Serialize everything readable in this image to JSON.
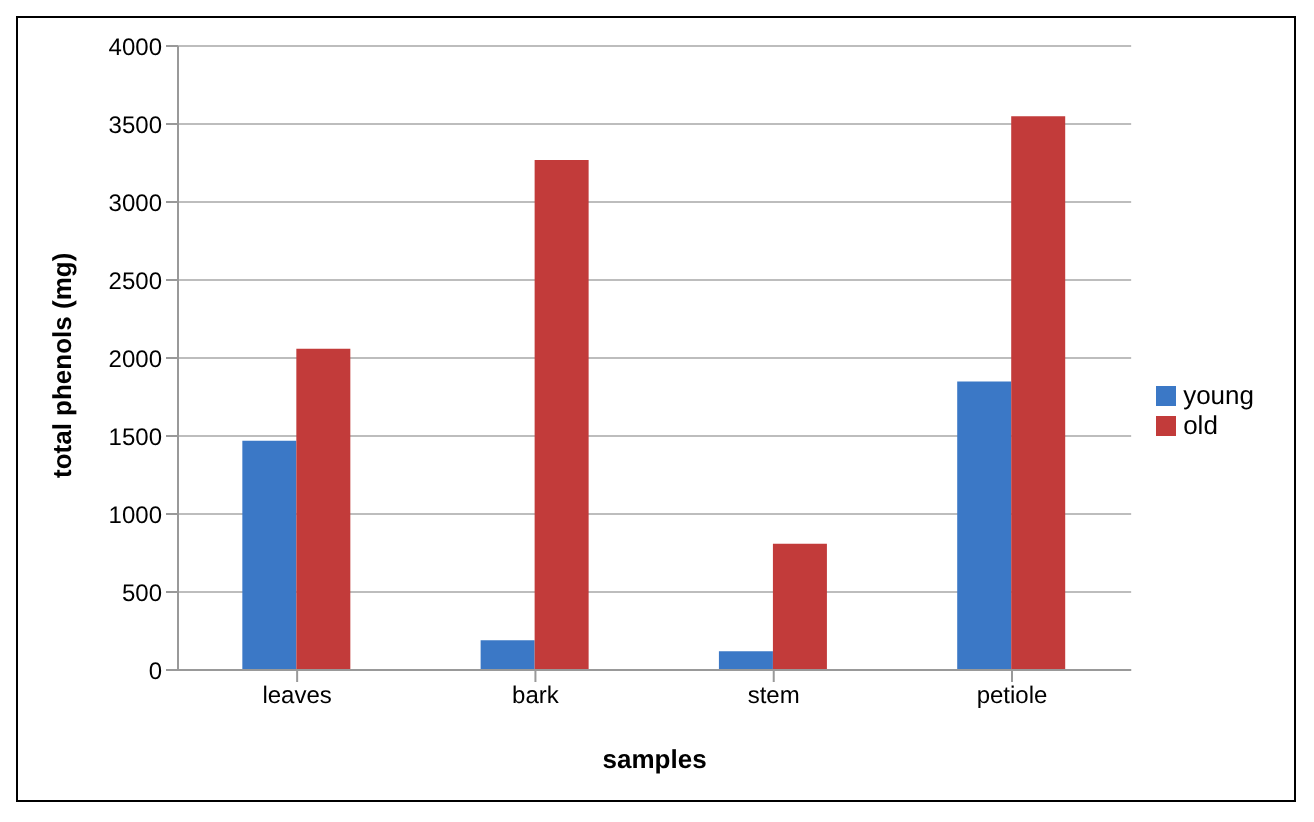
{
  "chart_data": {
    "type": "bar",
    "xlabel": "samples",
    "ylabel": "total phenols (mg)",
    "categories": [
      "leaves",
      "bark",
      "stem",
      "petiole"
    ],
    "series": [
      {
        "name": "young",
        "color": "#3b78c6",
        "values": [
          1470,
          190,
          120,
          1850
        ]
      },
      {
        "name": "old",
        "color": "#c23b3a",
        "values": [
          2060,
          3270,
          810,
          3550
        ]
      }
    ],
    "ylim": [
      0,
      4000
    ],
    "yticks": [
      0,
      500,
      1000,
      1500,
      2000,
      2500,
      3000,
      3500,
      4000
    ],
    "grid": "y",
    "legend": "right"
  }
}
